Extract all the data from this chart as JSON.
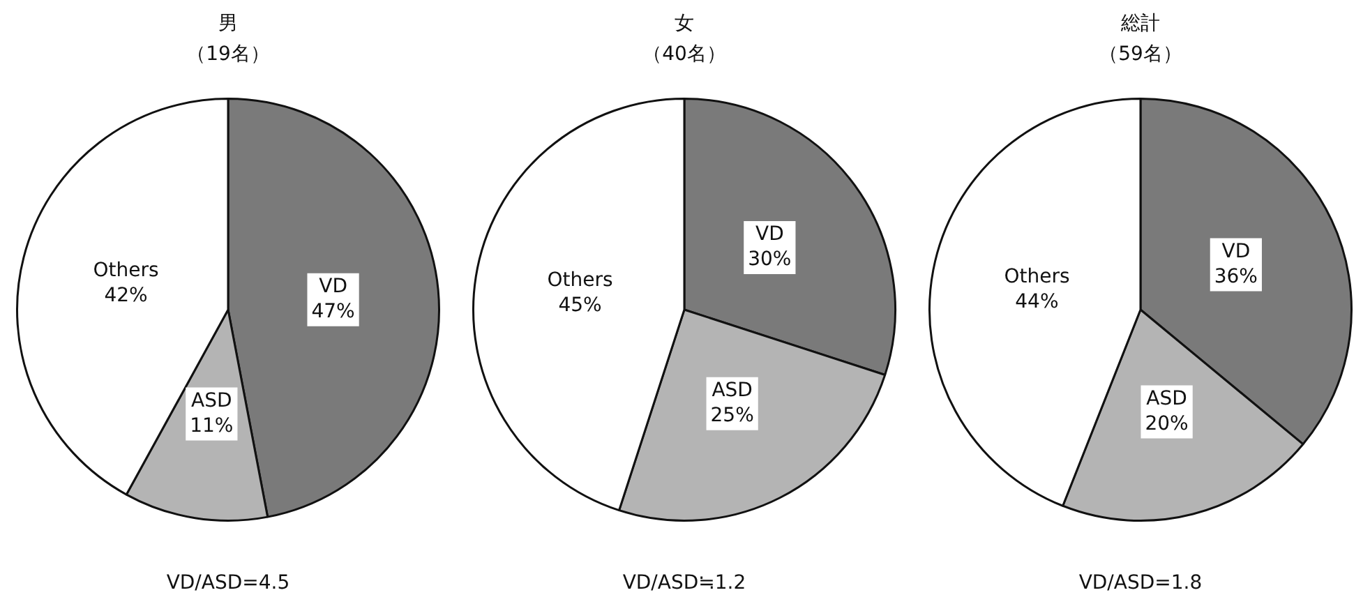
{
  "chart_data": [
    {
      "type": "pie",
      "title": "男",
      "subtitle": "（19名）",
      "categories": [
        "VD",
        "ASD",
        "Others"
      ],
      "values": [
        47,
        11,
        42
      ],
      "value_labels": [
        "47%",
        "11%",
        "42%"
      ],
      "colors": [
        "#7a7a7a",
        "#b4b4b4",
        "#ffffff"
      ],
      "legend": false,
      "annotations": [
        "VD/ASD=4.5"
      ]
    },
    {
      "type": "pie",
      "title": "女",
      "subtitle": "（40名）",
      "categories": [
        "VD",
        "ASD",
        "Others"
      ],
      "values": [
        30,
        25,
        45
      ],
      "value_labels": [
        "30%",
        "25%",
        "45%"
      ],
      "colors": [
        "#7a7a7a",
        "#b4b4b4",
        "#ffffff"
      ],
      "legend": false,
      "annotations": [
        "VD/ASD≒1.2"
      ]
    },
    {
      "type": "pie",
      "title": "総計",
      "subtitle": "（59名）",
      "categories": [
        "VD",
        "ASD",
        "Others"
      ],
      "values": [
        36,
        20,
        44
      ],
      "value_labels": [
        "36%",
        "20%",
        "44%"
      ],
      "colors": [
        "#7a7a7a",
        "#b4b4b4",
        "#ffffff"
      ],
      "legend": false,
      "annotations": [
        "VD/ASD=1.8"
      ]
    }
  ]
}
